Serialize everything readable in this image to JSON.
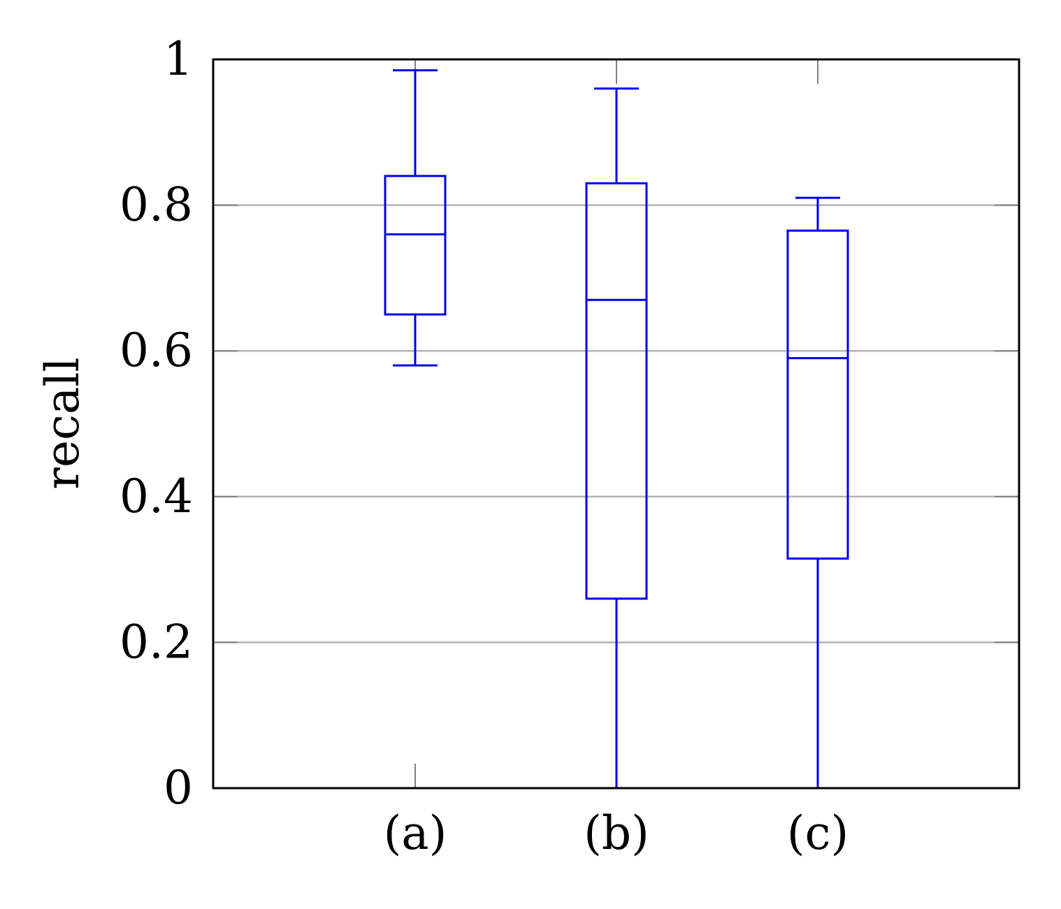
{
  "chart_data": {
    "type": "boxplot",
    "title": "",
    "xlabel": "",
    "ylabel": "recall",
    "ylim": [
      0,
      1
    ],
    "yticks": [
      0,
      0.2,
      0.4,
      0.6,
      0.8,
      1
    ],
    "ytick_labels": [
      "0",
      "0.2",
      "0.4",
      "0.6",
      "0.8",
      "1"
    ],
    "categories": [
      "(a)",
      "(b)",
      "(c)"
    ],
    "grid": "horizontal",
    "legend": "none",
    "box_color": "#0000ee",
    "grid_color": "#b3b3b3",
    "boxes": [
      {
        "category": "(a)",
        "whisker_low": 0.58,
        "q1": 0.65,
        "median": 0.76,
        "q3": 0.84,
        "whisker_high": 0.985
      },
      {
        "category": "(b)",
        "whisker_low": 0.0,
        "q1": 0.26,
        "median": 0.67,
        "q3": 0.83,
        "whisker_high": 0.96
      },
      {
        "category": "(c)",
        "whisker_low": 0.0,
        "q1": 0.315,
        "median": 0.59,
        "q3": 0.765,
        "whisker_high": 0.81
      }
    ]
  }
}
